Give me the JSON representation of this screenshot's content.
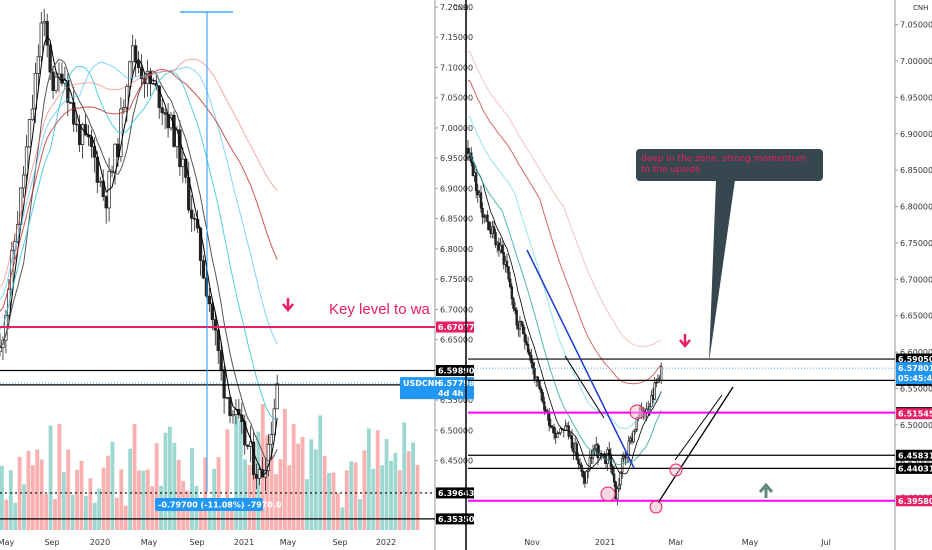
{
  "chart_data": [
    {
      "type": "candlestick",
      "symbol": "CNH",
      "timeframe": "weekly",
      "y_ticks": [
        "7.20000",
        "7.15000",
        "7.10000",
        "7.05000",
        "7.00000",
        "6.95000",
        "6.90000",
        "6.85000",
        "6.80000",
        "6.75000",
        "6.70000",
        "6.65000",
        "6.60000",
        "6.55000",
        "6.50000",
        "6.45000",
        "6.40000",
        "6.35000"
      ],
      "x_ticks": [
        "May",
        "Sep",
        "2020",
        "May",
        "Sep",
        "2021",
        "May",
        "Sep",
        "2022"
      ],
      "price_labels": [
        {
          "text": "6.67077",
          "value": 6.67077,
          "color": "#e91e63"
        },
        {
          "text": "6.59890",
          "value": 6.5989,
          "color": "#000000"
        },
        {
          "text": "6.57515",
          "value": 6.57515,
          "color": "#000000"
        },
        {
          "text": "6.39643",
          "value": 6.39643,
          "color": "#000000"
        },
        {
          "text": "6.35350",
          "value": 6.3535,
          "color": "#000000"
        }
      ],
      "current_price": {
        "symbol": "USDCNH",
        "price": "6.57798",
        "countdown": "4d 4h",
        "value": 6.57798,
        "color": "#2196f3"
      },
      "horizontal_levels": [
        {
          "value": 6.67077,
          "color": "#e91e63"
        },
        {
          "value": 6.5989,
          "color": "#000000"
        },
        {
          "value": 6.57515,
          "color": "#000000"
        },
        {
          "value": 6.39643,
          "color": "#000000",
          "style": "dotted"
        },
        {
          "value": 6.3535,
          "color": "#000000"
        }
      ],
      "annotation": {
        "text": "Key level to wa",
        "color": "#e91e63"
      },
      "measurement": {
        "text": "-0.79700 (-11.08%) -7970.0",
        "high": 7.19,
        "low": 6.39643,
        "color": "#2196f3"
      },
      "close_path": [
        {
          "x": 0.0,
          "close": 6.63
        },
        {
          "x": 0.04,
          "close": 6.84
        },
        {
          "x": 0.08,
          "close": 7.05
        },
        {
          "x": 0.1,
          "close": 7.18
        },
        {
          "x": 0.13,
          "close": 7.06
        },
        {
          "x": 0.15,
          "close": 7.1
        },
        {
          "x": 0.18,
          "close": 7.0
        },
        {
          "x": 0.22,
          "close": 6.96
        },
        {
          "x": 0.25,
          "close": 6.88
        },
        {
          "x": 0.28,
          "close": 6.97
        },
        {
          "x": 0.31,
          "close": 7.13
        },
        {
          "x": 0.35,
          "close": 7.08
        },
        {
          "x": 0.38,
          "close": 7.05
        },
        {
          "x": 0.42,
          "close": 6.98
        },
        {
          "x": 0.46,
          "close": 6.85
        },
        {
          "x": 0.5,
          "close": 6.71
        },
        {
          "x": 0.53,
          "close": 6.58
        },
        {
          "x": 0.56,
          "close": 6.52
        },
        {
          "x": 0.59,
          "close": 6.47
        },
        {
          "x": 0.62,
          "close": 6.42
        },
        {
          "x": 0.64,
          "close": 6.48
        },
        {
          "x": 0.66,
          "close": 6.578
        }
      ],
      "volume_color_up": "#26a69a",
      "volume_color_down": "#ef5350"
    },
    {
      "type": "candlestick",
      "symbol": "CNH",
      "timeframe": "4h",
      "y_ticks": [
        "7.05000",
        "7.00000",
        "6.95000",
        "6.90000",
        "6.85000",
        "6.80000",
        "6.75000",
        "6.70000",
        "6.65000",
        "6.60000",
        "6.55000",
        "6.50000",
        "6.45000",
        "6.40000"
      ],
      "x_ticks": [
        "Nov",
        "2021",
        "Mar",
        "May",
        "Jul"
      ],
      "price_labels": [
        {
          "text": "6.59050",
          "value": 6.5905,
          "color": "#000000"
        },
        {
          "text": "6.56121",
          "value": 6.56121,
          "color": "#000000"
        },
        {
          "text": "6.51689",
          "value": 6.51689,
          "color": "#000000"
        },
        {
          "text": "6.51545",
          "value": 6.51545,
          "color": "#e91e63"
        },
        {
          "text": "6.45831",
          "value": 6.45831,
          "color": "#000000"
        },
        {
          "text": "6.44031",
          "value": 6.44031,
          "color": "#000000"
        },
        {
          "text": "6.39580",
          "value": 6.3958,
          "color": "#e91e63"
        }
      ],
      "current_price": {
        "symbol": "",
        "price": "6.57801",
        "countdown": "05:45:40",
        "value": 6.57801,
        "color": "#2196f3"
      },
      "horizontal_levels": [
        {
          "value": 6.5905,
          "color": "#000000"
        },
        {
          "value": 6.56121,
          "color": "#000000"
        },
        {
          "value": 6.51689,
          "color": "#ff00ff"
        },
        {
          "value": 6.45831,
          "color": "#000000"
        },
        {
          "value": 6.44031,
          "color": "#000000"
        },
        {
          "value": 6.3958,
          "color": "#ff00ff"
        }
      ],
      "annotation": {
        "text": "deep in the zone, strong momentum to the upside",
        "color": "#e91e63"
      },
      "close_path": [
        {
          "x": 0.0,
          "close": 6.88
        },
        {
          "x": 0.04,
          "close": 6.8
        },
        {
          "x": 0.08,
          "close": 6.76
        },
        {
          "x": 0.12,
          "close": 6.72
        },
        {
          "x": 0.15,
          "close": 6.64
        },
        {
          "x": 0.18,
          "close": 6.62
        },
        {
          "x": 0.21,
          "close": 6.56
        },
        {
          "x": 0.24,
          "close": 6.52
        },
        {
          "x": 0.27,
          "close": 6.49
        },
        {
          "x": 0.3,
          "close": 6.5
        },
        {
          "x": 0.33,
          "close": 6.47
        },
        {
          "x": 0.36,
          "close": 6.42
        },
        {
          "x": 0.39,
          "close": 6.47
        },
        {
          "x": 0.42,
          "close": 6.45
        },
        {
          "x": 0.44,
          "close": 6.46
        },
        {
          "x": 0.46,
          "close": 6.4
        },
        {
          "x": 0.48,
          "close": 6.45
        },
        {
          "x": 0.5,
          "close": 6.47
        },
        {
          "x": 0.52,
          "close": 6.5
        },
        {
          "x": 0.54,
          "close": 6.52
        },
        {
          "x": 0.56,
          "close": 6.53
        },
        {
          "x": 0.58,
          "close": 6.55
        },
        {
          "x": 0.6,
          "close": 6.578
        }
      ]
    }
  ]
}
